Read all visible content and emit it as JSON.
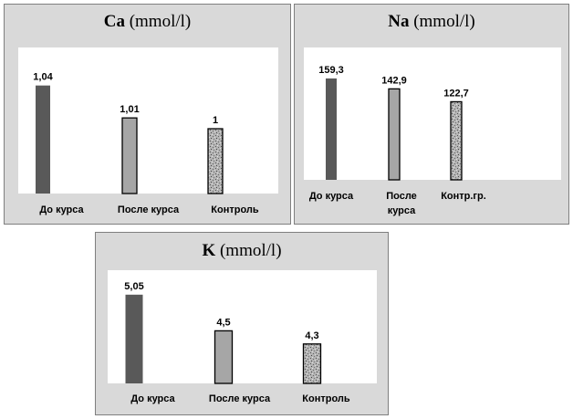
{
  "chart_data": [
    {
      "type": "bar",
      "title_element": "Ca",
      "title_unit": " (mmol/l)",
      "categories": [
        "До  курса",
        "После  курса",
        "Контроль"
      ],
      "values": [
        1.04,
        1.01,
        1
      ],
      "value_labels": [
        "1,04",
        "1,01",
        "1"
      ],
      "ylim": [
        0.94,
        1.06
      ],
      "grid": false,
      "bar_styles": [
        "dark",
        "light",
        "speckled"
      ]
    },
    {
      "type": "bar",
      "title_element": "Na",
      "title_unit": " (mmol/l)",
      "categories": [
        "До курса",
        "После курса",
        "Контр.гр."
      ],
      "values": [
        159.3,
        142.9,
        122.7
      ],
      "value_labels": [
        "159,3",
        "142,9",
        "122,7"
      ],
      "ylim": [
        0,
        185
      ],
      "grid": false,
      "bar_styles": [
        "dark",
        "light",
        "speckled"
      ]
    },
    {
      "type": "bar",
      "title_element": "K",
      "title_unit": " (mmol/l)",
      "categories": [
        "До курса",
        "После  курса",
        "Контроль"
      ],
      "values": [
        5.05,
        4.5,
        4.3
      ],
      "value_labels": [
        "5,05",
        "4,5",
        "4,3"
      ],
      "ylim": [
        3.7,
        5.2
      ],
      "grid": false,
      "bar_styles": [
        "dark",
        "light",
        "speckled"
      ]
    }
  ],
  "colors": {
    "dark": "#595959",
    "light": "#a6a6a6",
    "speckled": "#9a9a9a",
    "panel": "#d9d9d9",
    "plot": "#ffffff"
  }
}
